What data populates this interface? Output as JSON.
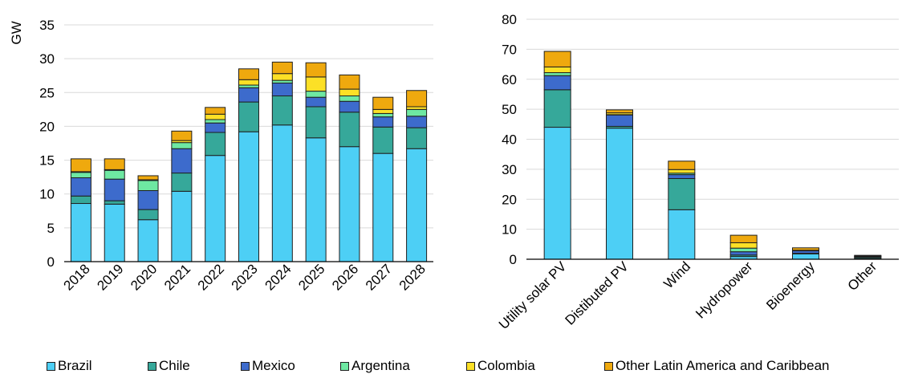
{
  "colors": {
    "Brazil": "#4dcff5",
    "Chile": "#36a89a",
    "Mexico": "#3d6bcc",
    "Argentina": "#6ee8a2",
    "Colombia": "#fce026",
    "Other Latin America and Caribbean": "#efa90e"
  },
  "legend": {
    "position": "bottom",
    "items": [
      "Brazil",
      "Chile",
      "Mexico",
      "Argentina",
      "Colombia",
      "Other Latin America and Caribbean"
    ]
  },
  "chart_data": [
    {
      "type": "bar",
      "stacked": true,
      "ylabel": "GW",
      "ylim": [
        0,
        35
      ],
      "yticks": [
        0,
        5,
        10,
        15,
        20,
        25,
        30,
        35
      ],
      "grid": true,
      "categories": [
        "2018",
        "2019",
        "2020",
        "2021",
        "2022",
        "2023",
        "2024",
        "2025",
        "2026",
        "2027",
        "2028"
      ],
      "series": [
        {
          "name": "Brazil",
          "values": [
            8.6,
            8.5,
            6.2,
            10.4,
            15.7,
            19.2,
            20.2,
            18.3,
            17.0,
            16.0,
            16.7
          ]
        },
        {
          "name": "Chile",
          "values": [
            1.1,
            0.5,
            1.5,
            2.7,
            3.4,
            4.4,
            4.3,
            4.6,
            5.1,
            3.9,
            3.1
          ]
        },
        {
          "name": "Mexico",
          "values": [
            2.7,
            3.2,
            2.8,
            3.6,
            1.4,
            2.1,
            1.9,
            1.4,
            1.6,
            1.5,
            1.7
          ]
        },
        {
          "name": "Argentina",
          "values": [
            0.8,
            1.3,
            1.5,
            0.9,
            0.5,
            0.4,
            0.4,
            0.9,
            0.8,
            0.5,
            1.0
          ]
        },
        {
          "name": "Colombia",
          "values": [
            0.1,
            0.1,
            0.1,
            0.3,
            0.8,
            0.8,
            1.0,
            2.1,
            1.0,
            0.6,
            0.4
          ]
        },
        {
          "name": "Other Latin America and Caribbean",
          "values": [
            1.9,
            1.6,
            0.6,
            1.4,
            1.0,
            1.6,
            1.7,
            2.1,
            2.1,
            1.8,
            2.4
          ]
        }
      ]
    },
    {
      "type": "bar",
      "stacked": true,
      "ylim": [
        0,
        80
      ],
      "yticks": [
        0,
        10,
        20,
        30,
        40,
        50,
        60,
        70,
        80
      ],
      "grid": true,
      "categories": [
        "Utility solar PV",
        "Distibuted PV",
        "Wind",
        "Hydropower",
        "Bioenergy",
        "Other"
      ],
      "series": [
        {
          "name": "Brazil",
          "values": [
            44.0,
            43.7,
            16.5,
            0.9,
            1.8,
            0.2
          ]
        },
        {
          "name": "Chile",
          "values": [
            12.5,
            0.6,
            10.4,
            0.5,
            0.2,
            0.4
          ]
        },
        {
          "name": "Mexico",
          "values": [
            4.7,
            3.8,
            1.3,
            1.1,
            0.8,
            0.2
          ]
        },
        {
          "name": "Argentina",
          "values": [
            1.0,
            0.1,
            0.5,
            1.2,
            0.1,
            0.2
          ]
        },
        {
          "name": "Colombia",
          "values": [
            1.9,
            0.6,
            1.2,
            1.8,
            0.1,
            0.1
          ]
        },
        {
          "name": "Other Latin America and Caribbean",
          "values": [
            5.2,
            1.0,
            2.8,
            2.5,
            0.8,
            0.2
          ]
        }
      ]
    }
  ]
}
